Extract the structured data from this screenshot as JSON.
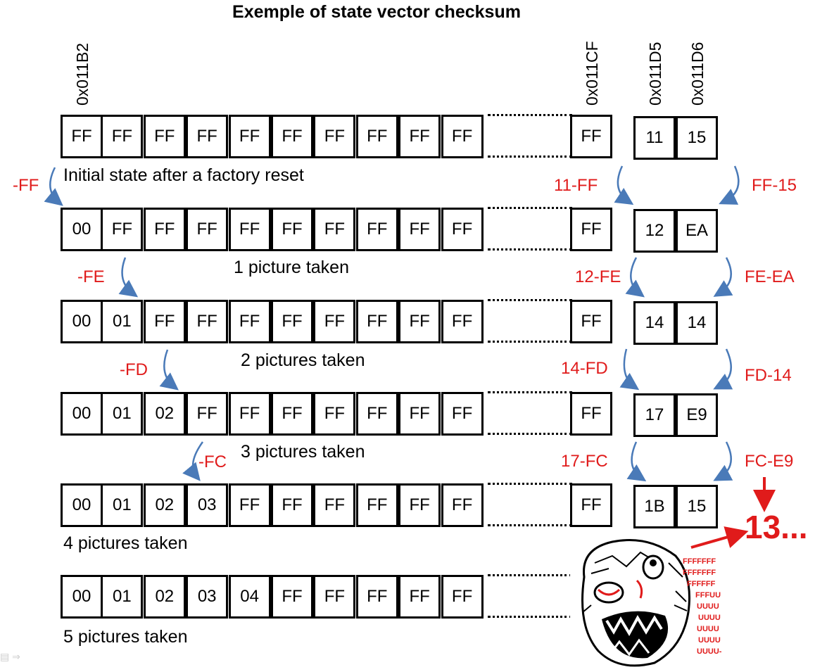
{
  "title": "Exemple of state vector checksum",
  "addresses": [
    "0x011B2",
    "0x011CF",
    "0x011D5",
    "0x011D6"
  ],
  "rows": [
    {
      "bytes": [
        "FF",
        "FF",
        "FF",
        "FF",
        "FF",
        "FF",
        "FF",
        "FF",
        "FF",
        "FF"
      ],
      "last": "FF",
      "checksum": [
        "11",
        "15"
      ],
      "caption": "Initial state after a factory reset"
    },
    {
      "bytes": [
        "00",
        "FF",
        "FF",
        "FF",
        "FF",
        "FF",
        "FF",
        "FF",
        "FF",
        "FF"
      ],
      "last": "FF",
      "checksum": [
        "12",
        "EA"
      ],
      "caption": "1 picture taken"
    },
    {
      "bytes": [
        "00",
        "01",
        "FF",
        "FF",
        "FF",
        "FF",
        "FF",
        "FF",
        "FF",
        "FF"
      ],
      "last": "FF",
      "checksum": [
        "14",
        "14"
      ],
      "caption": "2 pictures taken"
    },
    {
      "bytes": [
        "00",
        "01",
        "02",
        "FF",
        "FF",
        "FF",
        "FF",
        "FF",
        "FF",
        "FF"
      ],
      "last": "FF",
      "checksum": [
        "17",
        "E9"
      ],
      "caption": "3 pictures taken"
    },
    {
      "bytes": [
        "00",
        "01",
        "02",
        "03",
        "FF",
        "FF",
        "FF",
        "FF",
        "FF",
        "FF"
      ],
      "last": "FF",
      "checksum": [
        "1B",
        "15"
      ],
      "caption": "4 pictures taken"
    },
    {
      "bytes": [
        "00",
        "01",
        "02",
        "03",
        "04",
        "FF",
        "FF",
        "FF",
        "FF",
        "FF"
      ],
      "caption": "5 pictures taken"
    }
  ],
  "annotations": {
    "left": [
      "-FF",
      "-FE",
      "-FD",
      "-FC"
    ],
    "mid": [
      "11-FF",
      "12-FE",
      "14-FD",
      "17-FC"
    ],
    "right": [
      "FF-15",
      "FE-EA",
      "FD-14",
      "FC-E9"
    ],
    "result": "13...",
    "rage_text": [
      "FFFFFFF",
      "FFFFFFF",
      "FFFFFF",
      "FFFUU",
      "UUUU",
      "UUUU",
      "UUUU",
      "UUUU",
      "UUUU-"
    ]
  },
  "colors": {
    "annotation": "#e01b1b",
    "arrow": "#4a7ab8",
    "border": "#000000"
  }
}
